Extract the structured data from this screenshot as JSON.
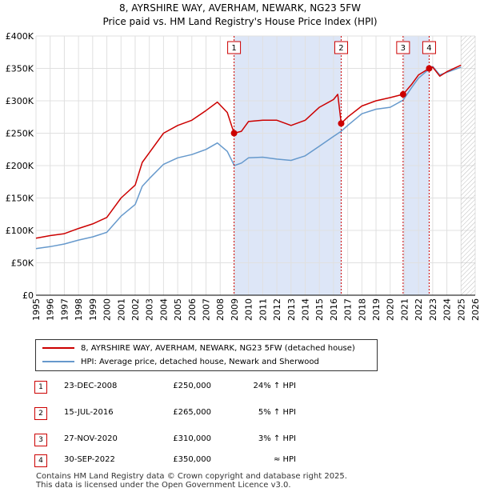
{
  "title_line1": "8, AYRSHIRE WAY, AVERHAM, NEWARK, NG23 5FW",
  "title_line2": "Price paid vs. HM Land Registry's House Price Index (HPI)",
  "colors": {
    "property": "#cc0000",
    "hpi": "#6699cc",
    "shade": "#dde6f7",
    "grid": "#e0e0e0"
  },
  "legend": {
    "property_label": "8, AYRSHIRE WAY, AVERHAM, NEWARK, NG23 5FW (detached house)",
    "hpi_label": "HPI: Average price, detached house, Newark and Sherwood"
  },
  "sales": [
    {
      "num": "1",
      "date": "23-DEC-2008",
      "price": "£250,000",
      "hpi": "24% ↑ HPI"
    },
    {
      "num": "2",
      "date": "15-JUL-2016",
      "price": "£265,000",
      "hpi": "5% ↑ HPI"
    },
    {
      "num": "3",
      "date": "27-NOV-2020",
      "price": "£310,000",
      "hpi": "3% ↑ HPI"
    },
    {
      "num": "4",
      "date": "30-SEP-2022",
      "price": "£350,000",
      "hpi": "≈ HPI"
    }
  ],
  "footer": {
    "line1": "Contains HM Land Registry data © Crown copyright and database right 2025.",
    "line2": "This data is licensed under the Open Government Licence v3.0."
  },
  "chart_data": {
    "type": "line",
    "title": "8, AYRSHIRE WAY, AVERHAM, NEWARK, NG23 5FW",
    "subtitle": "Price paid vs. HM Land Registry's House Price Index (HPI)",
    "xlim": [
      1995,
      2026
    ],
    "ylim": [
      0,
      400000
    ],
    "x_ticks": [
      "1995",
      "1996",
      "1997",
      "1998",
      "1999",
      "2000",
      "2001",
      "2002",
      "2003",
      "2004",
      "2005",
      "2006",
      "2007",
      "2008",
      "2009",
      "2010",
      "2011",
      "2012",
      "2013",
      "2014",
      "2015",
      "2016",
      "2017",
      "2018",
      "2019",
      "2020",
      "2021",
      "2022",
      "2023",
      "2024",
      "2025",
      "2026"
    ],
    "y_ticks": [
      {
        "value": 0,
        "label": "£0"
      },
      {
        "value": 50000,
        "label": "£50K"
      },
      {
        "value": 100000,
        "label": "£100K"
      },
      {
        "value": 150000,
        "label": "£150K"
      },
      {
        "value": 200000,
        "label": "£200K"
      },
      {
        "value": 250000,
        "label": "£250K"
      },
      {
        "value": 300000,
        "label": "£300K"
      },
      {
        "value": 350000,
        "label": "£350K"
      },
      {
        "value": 400000,
        "label": "£400K"
      }
    ],
    "shaded_periods": [
      [
        2008.98,
        2016.54
      ],
      [
        2020.91,
        2022.75
      ]
    ],
    "forecast_start": 2025.0,
    "sale_markers": [
      {
        "label": "1",
        "x": 2008.98,
        "y": 250000
      },
      {
        "label": "2",
        "x": 2016.54,
        "y": 265000
      },
      {
        "label": "3",
        "x": 2020.91,
        "y": 310000
      },
      {
        "label": "4",
        "x": 2022.75,
        "y": 350000
      }
    ],
    "series": [
      {
        "name": "8, AYRSHIRE WAY, AVERHAM, NEWARK, NG23 5FW (detached house)",
        "x": [
          1995,
          1996,
          1997,
          1998,
          1999,
          2000,
          2001,
          2002,
          2002.5,
          2003,
          2004,
          2005,
          2006,
          2007,
          2007.8,
          2008.5,
          2008.98,
          2009.5,
          2010,
          2011,
          2012,
          2013,
          2014,
          2015,
          2016,
          2016.3,
          2016.54,
          2017,
          2018,
          2019,
          2020,
          2020.91,
          2021.5,
          2022,
          2022.75,
          2023,
          2023.5,
          2024,
          2025
        ],
        "y": [
          88000,
          92000,
          95000,
          103000,
          110000,
          120000,
          150000,
          170000,
          205000,
          220000,
          250000,
          262000,
          270000,
          285000,
          298000,
          282000,
          250000,
          253000,
          268000,
          270000,
          270000,
          262000,
          270000,
          290000,
          302000,
          310000,
          265000,
          275000,
          292000,
          300000,
          305000,
          310000,
          325000,
          340000,
          350000,
          352000,
          338000,
          345000,
          355000
        ]
      },
      {
        "name": "HPI: Average price, detached house, Newark and Sherwood",
        "x": [
          1995,
          1996,
          1997,
          1998,
          1999,
          2000,
          2001,
          2002,
          2002.5,
          2003,
          2004,
          2005,
          2006,
          2007,
          2007.8,
          2008.5,
          2009,
          2009.5,
          2010,
          2011,
          2012,
          2013,
          2014,
          2015,
          2016,
          2016.54,
          2017,
          2018,
          2019,
          2020,
          2020.91,
          2021.5,
          2022,
          2022.75,
          2023,
          2023.5,
          2024,
          2025
        ],
        "y": [
          72000,
          75000,
          79000,
          85000,
          90000,
          97000,
          122000,
          140000,
          168000,
          180000,
          202000,
          212000,
          217000,
          225000,
          235000,
          222000,
          200000,
          204000,
          212000,
          213000,
          210000,
          208000,
          215000,
          230000,
          245000,
          253000,
          262000,
          280000,
          287000,
          290000,
          301000,
          320000,
          335000,
          349000,
          353000,
          340000,
          344000,
          352000
        ]
      }
    ]
  }
}
